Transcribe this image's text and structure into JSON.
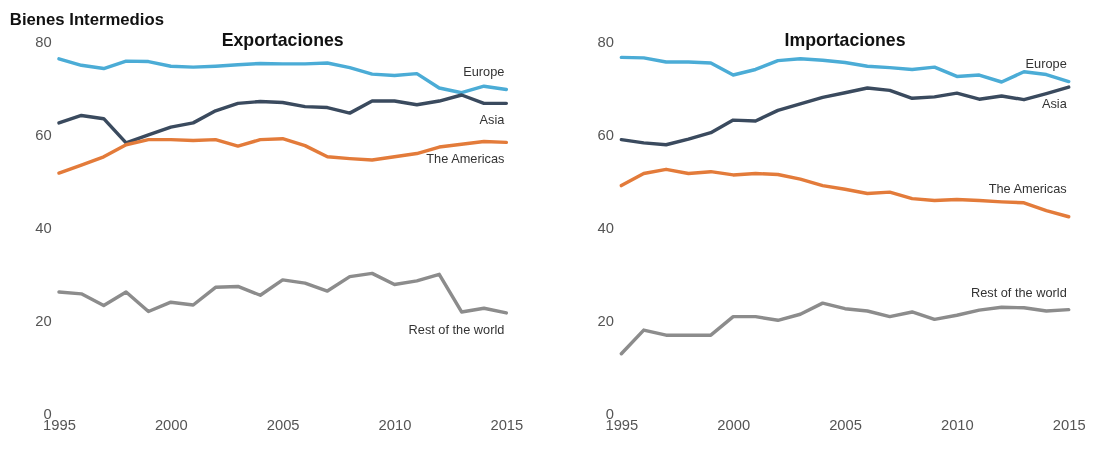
{
  "chart_data": [
    {
      "type": "line",
      "title": "Exportaciones",
      "annotations": [
        "Bienes Intermedios"
      ],
      "x": [
        1995,
        1996,
        1997,
        1998,
        1999,
        2000,
        2001,
        2002,
        2003,
        2004,
        2005,
        2006,
        2007,
        2008,
        2009,
        2010,
        2011,
        2012,
        2013,
        2014,
        2015
      ],
      "xlim": [
        1995,
        2015
      ],
      "xticks": [
        1995,
        2000,
        2005,
        2010,
        2015
      ],
      "ylim": [
        0,
        80
      ],
      "yticks": [
        0,
        20,
        40,
        60,
        80
      ],
      "grid": false,
      "legend": false,
      "marker": "none",
      "line_style": "solid",
      "series": [
        {
          "name": "Europe",
          "color": "#4bacd6",
          "values": [
            76.4,
            75.0,
            74.3,
            75.9,
            75.8,
            74.8,
            74.6,
            74.8,
            75.1,
            75.4,
            75.3,
            75.3,
            75.5,
            74.5,
            73.1,
            72.8,
            73.2,
            70.1,
            69.1,
            70.5,
            69.8
          ]
        },
        {
          "name": "Asia",
          "color": "#3a4a5e",
          "values": [
            62.6,
            64.2,
            63.5,
            58.3,
            60.0,
            61.7,
            62.6,
            65.2,
            66.8,
            67.2,
            67.0,
            66.1,
            65.9,
            64.7,
            67.3,
            67.3,
            66.5,
            67.3,
            68.6,
            66.8,
            66.8
          ]
        },
        {
          "name": "The Americas",
          "color": "#e37b3a",
          "values": [
            51.8,
            53.5,
            55.3,
            57.9,
            59.0,
            59.0,
            58.8,
            59.0,
            57.6,
            59.0,
            59.2,
            57.7,
            55.3,
            54.9,
            54.6,
            55.3,
            56.0,
            57.4,
            58.0,
            58.6,
            58.4
          ]
        },
        {
          "name": "Rest of the world",
          "color": "#8c8c8c",
          "values": [
            26.2,
            25.8,
            23.3,
            26.2,
            22.0,
            24.0,
            23.4,
            27.2,
            27.4,
            25.5,
            28.8,
            28.1,
            26.4,
            29.5,
            30.2,
            27.8,
            28.6,
            30.0,
            21.9,
            22.7,
            21.7
          ]
        }
      ]
    },
    {
      "type": "line",
      "title": "Importaciones",
      "x": [
        1995,
        1996,
        1997,
        1998,
        1999,
        2000,
        2001,
        2002,
        2003,
        2004,
        2005,
        2006,
        2007,
        2008,
        2009,
        2010,
        2011,
        2012,
        2013,
        2014,
        2015
      ],
      "xlim": [
        1995,
        2015
      ],
      "xticks": [
        1995,
        2000,
        2005,
        2010,
        2015
      ],
      "ylim": [
        0,
        80
      ],
      "yticks": [
        0,
        20,
        40,
        60,
        80
      ],
      "grid": false,
      "legend": false,
      "marker": "none",
      "line_style": "solid",
      "series": [
        {
          "name": "Europe",
          "color": "#4bacd6",
          "values": [
            76.7,
            76.6,
            75.7,
            75.7,
            75.5,
            72.9,
            74.1,
            76.0,
            76.4,
            76.1,
            75.6,
            74.8,
            74.5,
            74.1,
            74.6,
            72.6,
            72.9,
            71.4,
            73.6,
            73.0,
            71.5
          ]
        },
        {
          "name": "Asia",
          "color": "#3a4a5e",
          "values": [
            59.0,
            58.3,
            57.9,
            59.1,
            60.5,
            63.2,
            63.0,
            65.3,
            66.7,
            68.1,
            69.1,
            70.1,
            69.6,
            67.9,
            68.2,
            69.0,
            67.7,
            68.4,
            67.6,
            68.9,
            70.3
          ]
        },
        {
          "name": "The Americas",
          "color": "#e37b3a",
          "values": [
            49.1,
            51.7,
            52.6,
            51.7,
            52.1,
            51.4,
            51.7,
            51.5,
            50.5,
            49.1,
            48.3,
            47.4,
            47.7,
            46.3,
            45.9,
            46.1,
            45.9,
            45.6,
            45.4,
            43.7,
            42.4
          ]
        },
        {
          "name": "Rest of the world",
          "color": "#8c8c8c",
          "values": [
            12.9,
            18.0,
            16.9,
            16.9,
            16.9,
            20.9,
            20.9,
            20.1,
            21.4,
            23.8,
            22.6,
            22.1,
            20.9,
            21.9,
            20.3,
            21.2,
            22.3,
            22.9,
            22.8,
            22.1,
            22.4
          ]
        }
      ]
    }
  ]
}
